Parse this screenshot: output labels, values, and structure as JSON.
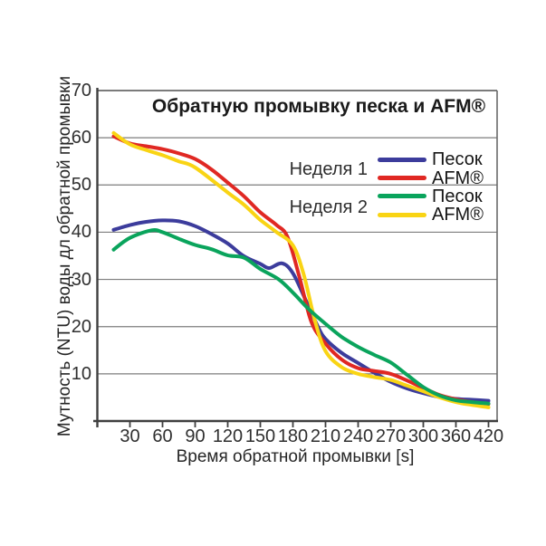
{
  "chart_data": {
    "type": "line",
    "title": "Обратную промывку песка и AFM®",
    "xlabel": "Время обратной промывки [s]",
    "ylabel": "Мутность (NTU) воды дл обратной промывки",
    "x_ticks": [
      "30",
      "60",
      "90",
      "120",
      "150",
      "180",
      "210",
      "240",
      "270",
      "300",
      "360",
      "420"
    ],
    "y_ticks": [
      "10",
      "20",
      "30",
      "40",
      "50",
      "60",
      "70"
    ],
    "ylim": [
      0,
      70
    ],
    "x_unit": "s",
    "grid": "horizontal",
    "legend_position": "inside-top-right",
    "legend_groups": [
      {
        "label": "Неделя 1"
      },
      {
        "label": "Неделя 2"
      }
    ],
    "series": [
      {
        "name": "Песок — Неделя 1",
        "legend_label": "Песок",
        "group": "Неделя 1",
        "color": "#3c3c9c",
        "points": [
          [
            15,
            40.5
          ],
          [
            30,
            41.5
          ],
          [
            45,
            42.2
          ],
          [
            60,
            42.5
          ],
          [
            75,
            42.3
          ],
          [
            90,
            41.3
          ],
          [
            105,
            39.6
          ],
          [
            120,
            37.6
          ],
          [
            135,
            34.9
          ],
          [
            150,
            33.3
          ],
          [
            158,
            32.4
          ],
          [
            170,
            33.4
          ],
          [
            180,
            31.3
          ],
          [
            192,
            25.5
          ],
          [
            203,
            20
          ],
          [
            210,
            17.4
          ],
          [
            225,
            14.4
          ],
          [
            240,
            12.3
          ],
          [
            255,
            10.2
          ],
          [
            270,
            8.3
          ],
          [
            285,
            6.9
          ],
          [
            300,
            5.9
          ],
          [
            330,
            5.1
          ],
          [
            360,
            4.7
          ],
          [
            390,
            4.5
          ],
          [
            420,
            4.3
          ]
        ]
      },
      {
        "name": "AFM® — Неделя 1",
        "legend_label": "AFM®",
        "group": "Неделя 1",
        "color": "#e02823",
        "points": [
          [
            15,
            60.3
          ],
          [
            30,
            58.8
          ],
          [
            45,
            58.2
          ],
          [
            60,
            57.6
          ],
          [
            75,
            56.7
          ],
          [
            90,
            55.5
          ],
          [
            105,
            53.3
          ],
          [
            120,
            50.5
          ],
          [
            135,
            47.6
          ],
          [
            150,
            44.2
          ],
          [
            165,
            41.5
          ],
          [
            175,
            39
          ],
          [
            186,
            30.5
          ],
          [
            197,
            21
          ],
          [
            210,
            16.4
          ],
          [
            225,
            13
          ],
          [
            240,
            11.2
          ],
          [
            255,
            10.6
          ],
          [
            270,
            10
          ],
          [
            285,
            8.6
          ],
          [
            300,
            7
          ],
          [
            330,
            5.5
          ],
          [
            360,
            4.6
          ],
          [
            390,
            4
          ],
          [
            420,
            3.6
          ]
        ]
      },
      {
        "name": "Песок — Неделя 2",
        "legend_label": "Песок",
        "group": "Неделя 2",
        "color": "#0aa45c",
        "points": [
          [
            15,
            36.3
          ],
          [
            30,
            38.8
          ],
          [
            50,
            40.4
          ],
          [
            60,
            40
          ],
          [
            75,
            38.6
          ],
          [
            90,
            37.3
          ],
          [
            105,
            36.4
          ],
          [
            120,
            35.1
          ],
          [
            135,
            34.6
          ],
          [
            150,
            32.2
          ],
          [
            167,
            30
          ],
          [
            180,
            27.2
          ],
          [
            195,
            23.6
          ],
          [
            210,
            20.6
          ],
          [
            225,
            17.8
          ],
          [
            240,
            15.7
          ],
          [
            255,
            14
          ],
          [
            270,
            12.4
          ],
          [
            285,
            9.8
          ],
          [
            300,
            7.2
          ],
          [
            330,
            5.4
          ],
          [
            360,
            4.4
          ],
          [
            390,
            4
          ],
          [
            420,
            3.7
          ]
        ]
      },
      {
        "name": "AFM® — Неделя 2",
        "legend_label": "AFM®",
        "group": "Неделя 2",
        "color": "#f9d414",
        "points": [
          [
            15,
            61
          ],
          [
            30,
            58.6
          ],
          [
            45,
            57.4
          ],
          [
            60,
            56.3
          ],
          [
            75,
            55
          ],
          [
            90,
            53.7
          ],
          [
            120,
            48.4
          ],
          [
            135,
            45.8
          ],
          [
            150,
            42.6
          ],
          [
            165,
            40
          ],
          [
            180,
            37.2
          ],
          [
            190,
            31
          ],
          [
            200,
            21.5
          ],
          [
            210,
            14.8
          ],
          [
            225,
            11.4
          ],
          [
            240,
            10
          ],
          [
            255,
            9.3
          ],
          [
            270,
            8.7
          ],
          [
            285,
            7.5
          ],
          [
            300,
            6.3
          ],
          [
            330,
            5
          ],
          [
            360,
            4
          ],
          [
            390,
            3.4
          ],
          [
            420,
            2.9
          ]
        ]
      }
    ]
  }
}
